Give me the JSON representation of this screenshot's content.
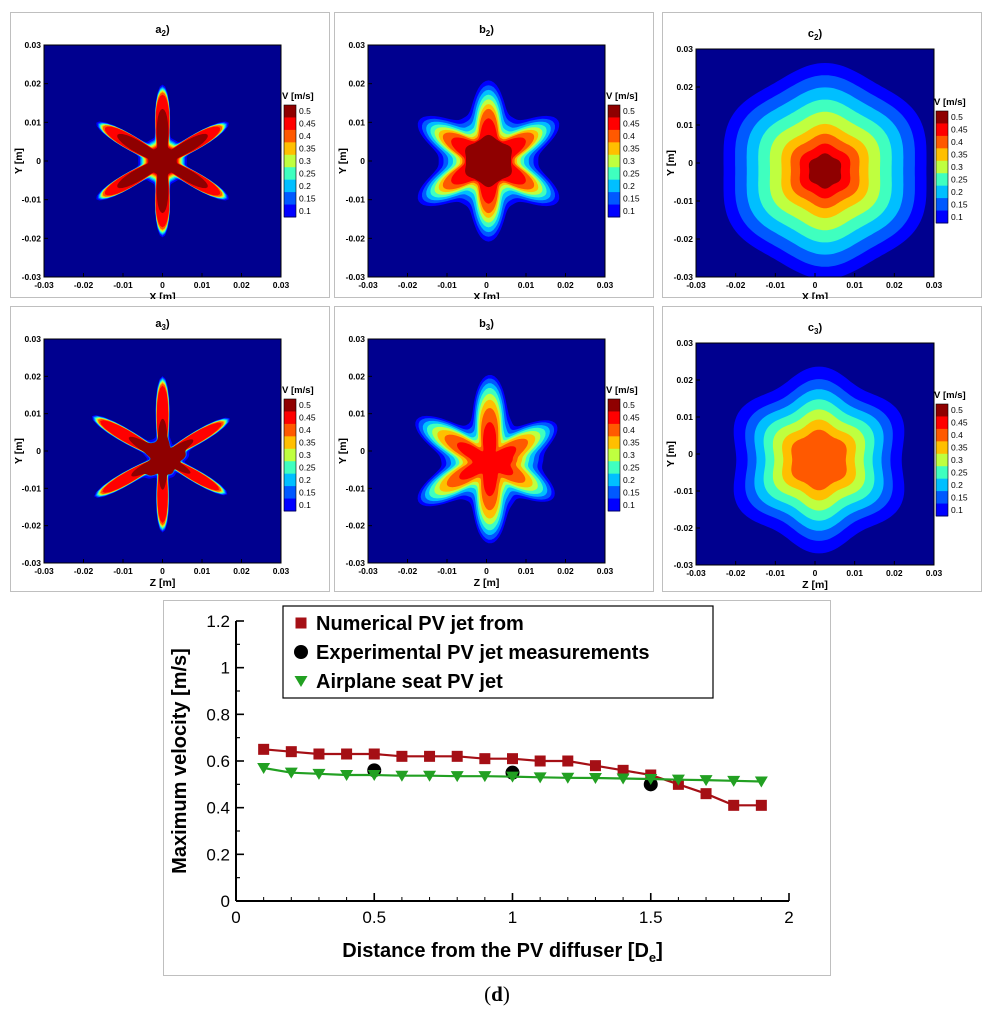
{
  "palette": [
    "#00008f",
    "#0000ff",
    "#0059ff",
    "#00bfff",
    "#3fffbf",
    "#bfff3f",
    "#ffbf00",
    "#ff5900",
    "#ff0000",
    "#8f0000"
  ],
  "colorbar": {
    "title": "V [m/s]",
    "ticks": [
      "0.5",
      "0.45",
      "0.4",
      "0.35",
      "0.3",
      "0.25",
      "0.2",
      "0.15",
      "0.1"
    ]
  },
  "panels": [
    {
      "id": "a2",
      "label_base": "a",
      "label_sub": "2",
      "xlabel": "X [m]",
      "ylabel": "Y [m]",
      "ticks": [
        "-0.03",
        "-0.02",
        "-0.01",
        "0",
        "0.01",
        "0.02",
        "0.03"
      ]
    },
    {
      "id": "b2",
      "label_base": "b",
      "label_sub": "2",
      "xlabel": "X [m]",
      "ylabel": "Y [m]",
      "ticks": [
        "-0.03",
        "-0.02",
        "-0.01",
        "0",
        "0.01",
        "0.02",
        "0.03"
      ]
    },
    {
      "id": "c2",
      "label_base": "c",
      "label_sub": "2",
      "xlabel": "X [m]",
      "ylabel": "Y [m]",
      "ticks": [
        "-0.03",
        "-0.02",
        "-0.01",
        "0",
        "0.01",
        "0.02",
        "0.03"
      ]
    },
    {
      "id": "a3",
      "label_base": "a",
      "label_sub": "3",
      "xlabel": "Z [m]",
      "ylabel": "Y [m]",
      "ticks": [
        "-0.03",
        "-0.02",
        "-0.01",
        "0",
        "0.01",
        "0.02",
        "0.03"
      ]
    },
    {
      "id": "b3",
      "label_base": "b",
      "label_sub": "3",
      "xlabel": "Z [m]",
      "ylabel": "Y [m]",
      "ticks": [
        "-0.03",
        "-0.02",
        "-0.01",
        "0",
        "0.01",
        "0.02",
        "0.03"
      ]
    },
    {
      "id": "c3",
      "label_base": "c",
      "label_sub": "3",
      "xlabel": "Z [m]",
      "ylabel": "Y [m]",
      "ticks": [
        "-0.03",
        "-0.02",
        "-0.01",
        "0",
        "0.01",
        "0.02",
        "0.03"
      ]
    }
  ],
  "chart_data": {
    "type": "line",
    "xlabel": "Distance from the PV diffuser [D",
    "xlabel_sub": "e",
    "xlabel_end": "]",
    "ylabel": "Maximum velocity [m/s]",
    "xlim": [
      0,
      2
    ],
    "ylim": [
      0,
      1.2
    ],
    "xticks": [
      "0",
      "0.5",
      "1",
      "1.5",
      "2"
    ],
    "yticks": [
      "0",
      "0.2",
      "0.4",
      "0.6",
      "0.8",
      "1",
      "1.2"
    ],
    "legend_position": "top",
    "series": [
      {
        "name": "Numerical PV jet from",
        "color": "#a50f15",
        "marker": "square",
        "line": true,
        "x": [
          0.1,
          0.2,
          0.3,
          0.4,
          0.5,
          0.6,
          0.7,
          0.8,
          0.9,
          1.0,
          1.1,
          1.2,
          1.3,
          1.4,
          1.5,
          1.6,
          1.7,
          1.8,
          1.9
        ],
        "y": [
          0.65,
          0.64,
          0.63,
          0.63,
          0.63,
          0.62,
          0.62,
          0.62,
          0.61,
          0.61,
          0.6,
          0.6,
          0.58,
          0.56,
          0.54,
          0.5,
          0.46,
          0.41,
          0.41
        ]
      },
      {
        "name": "Experimental PV jet measurements",
        "color": "#000000",
        "marker": "circle",
        "line": false,
        "x": [
          0.5,
          1.0,
          1.5
        ],
        "y": [
          0.56,
          0.55,
          0.5
        ]
      },
      {
        "name": "Airplane seat PV jet",
        "color": "#22a022",
        "marker": "triangle",
        "line": true,
        "x": [
          0.1,
          0.2,
          0.3,
          0.4,
          0.5,
          0.6,
          0.7,
          0.8,
          0.9,
          1.0,
          1.1,
          1.2,
          1.3,
          1.4,
          1.5,
          1.6,
          1.7,
          1.8,
          1.9
        ],
        "y": [
          0.57,
          0.55,
          0.545,
          0.54,
          0.54,
          0.537,
          0.537,
          0.535,
          0.535,
          0.533,
          0.53,
          0.528,
          0.527,
          0.525,
          0.523,
          0.52,
          0.518,
          0.515,
          0.512
        ]
      }
    ]
  },
  "caption": {
    "text": "d"
  }
}
